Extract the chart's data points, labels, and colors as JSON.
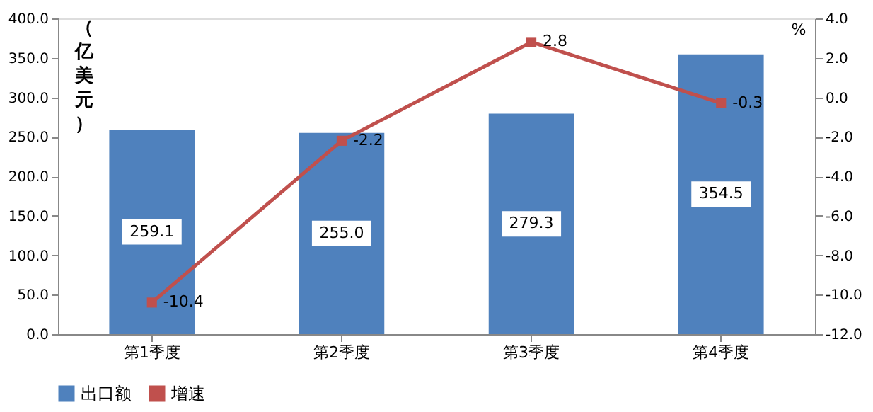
{
  "chart_data": {
    "type": "bar",
    "categories": [
      "第1季度",
      "第2季度",
      "第3季度",
      "第4季度"
    ],
    "series": [
      {
        "name": "出口额",
        "color": "#4f81bd",
        "values": [
          259.1,
          255.0,
          279.3,
          354.5
        ],
        "value_labels": [
          "259.1",
          "255.0",
          "279.3",
          "354.5"
        ]
      },
      {
        "name": "增速",
        "type": "line",
        "axis": "y2",
        "color": "#c0504d",
        "values": [
          -10.4,
          -2.2,
          2.8,
          -0.3
        ]
      }
    ],
    "ylabel": "（亿美元）",
    "y2label": "%",
    "ylim": [
      0,
      400
    ],
    "yticks": [
      {
        "value": 0,
        "label": "0.0"
      },
      {
        "value": 50,
        "label": "50.0"
      },
      {
        "value": 100,
        "label": "100.0"
      },
      {
        "value": 150,
        "label": "150.0"
      },
      {
        "value": 200,
        "label": "200.0"
      },
      {
        "value": 250,
        "label": "250.0"
      },
      {
        "value": 300,
        "label": "300.0"
      },
      {
        "value": 350,
        "label": "350.0"
      },
      {
        "value": 400,
        "label": "400.0"
      }
    ],
    "y2lim": [
      -12,
      4
    ],
    "y2ticks": [
      {
        "value": -12,
        "label": "-12.0"
      },
      {
        "value": -10,
        "label": "-10.0"
      },
      {
        "value": -8,
        "label": "-8.0"
      },
      {
        "value": -6,
        "label": "-6.0"
      },
      {
        "value": -4,
        "label": "-4.0"
      },
      {
        "value": -2,
        "label": "-2.0"
      },
      {
        "value": 0,
        "label": "0.0"
      },
      {
        "value": 2,
        "label": "2.0"
      },
      {
        "value": 4,
        "label": "4.0"
      }
    ],
    "data_labels": true,
    "marker": "square",
    "line_style": "solid",
    "grid": false,
    "legend": "bottom"
  }
}
